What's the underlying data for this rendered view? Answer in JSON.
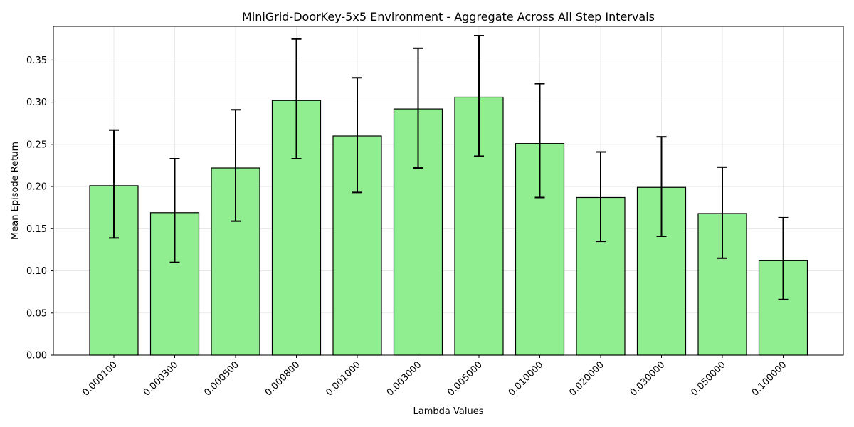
{
  "chart_data": {
    "type": "bar",
    "title": "MiniGrid-DoorKey-5x5 Environment - Aggregate Across All Step Intervals",
    "xlabel": "Lambda Values",
    "ylabel": "Mean Episode Return",
    "categories": [
      "0.000100",
      "0.000300",
      "0.000500",
      "0.000800",
      "0.001000",
      "0.003000",
      "0.005000",
      "0.010000",
      "0.020000",
      "0.030000",
      "0.050000",
      "0.100000"
    ],
    "values": [
      0.201,
      0.169,
      0.222,
      0.302,
      0.26,
      0.292,
      0.306,
      0.251,
      0.187,
      0.199,
      0.168,
      0.112
    ],
    "error_low": [
      0.139,
      0.11,
      0.159,
      0.233,
      0.193,
      0.222,
      0.236,
      0.187,
      0.135,
      0.141,
      0.115,
      0.066
    ],
    "error_high": [
      0.267,
      0.233,
      0.291,
      0.375,
      0.329,
      0.364,
      0.379,
      0.322,
      0.241,
      0.259,
      0.223,
      0.163
    ],
    "ylim": [
      0,
      0.39
    ],
    "yticks": [
      "0.00",
      "0.05",
      "0.10",
      "0.15",
      "0.20",
      "0.25",
      "0.30",
      "0.35"
    ],
    "ytick_values": [
      0,
      0.05,
      0.1,
      0.15,
      0.2,
      0.25,
      0.3,
      0.35
    ],
    "grid": true,
    "colors": {
      "bar": "#90ee90",
      "edge": "#000000"
    }
  }
}
